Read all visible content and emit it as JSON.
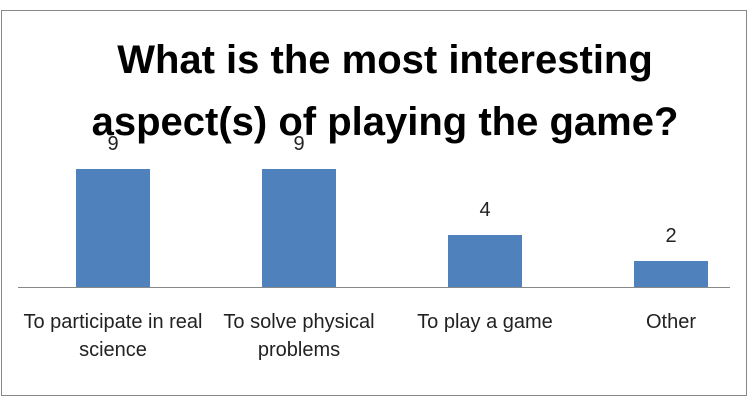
{
  "chart_data": {
    "type": "bar",
    "title": "What is the most interesting aspect(s) of playing the game?",
    "categories": [
      "To participate in real science",
      "To solve physical problems",
      "To play a game",
      "Other"
    ],
    "values": [
      9,
      9,
      4,
      2
    ],
    "color": "#4f81bd"
  }
}
